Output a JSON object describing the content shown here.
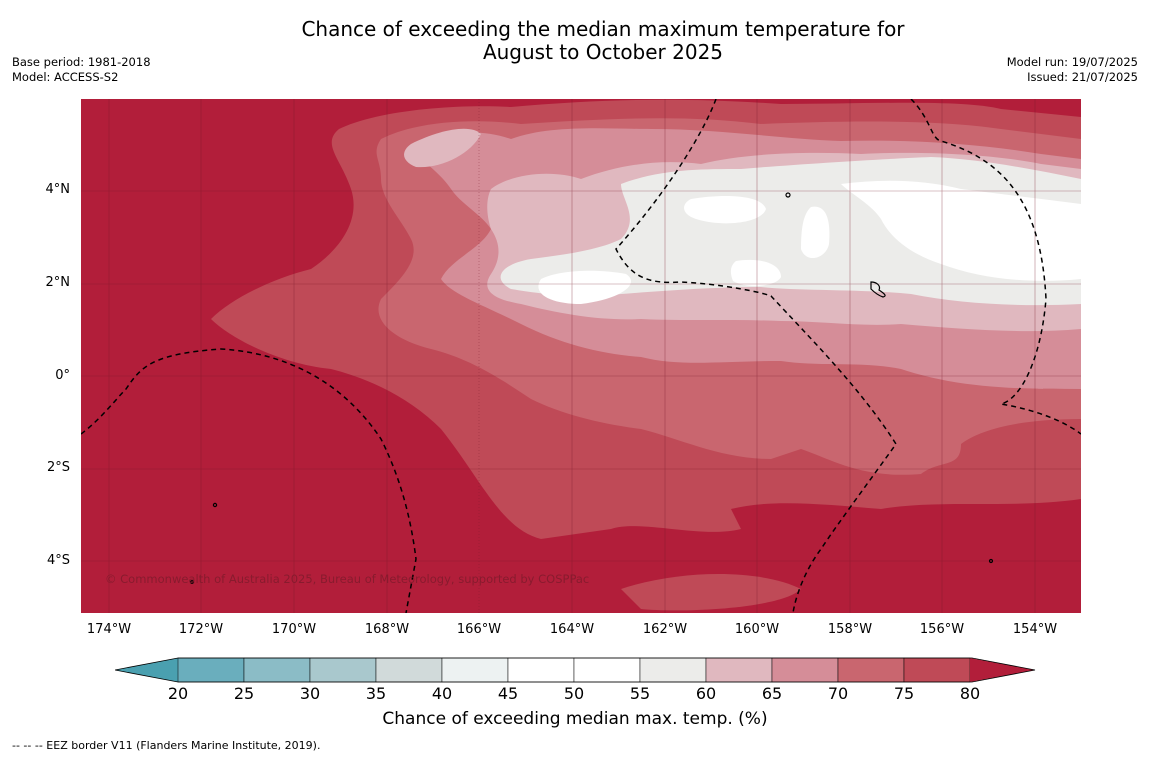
{
  "title": {
    "line1": "Chance of exceeding the median maximum temperature for",
    "line2": "August to October 2025"
  },
  "meta_left": {
    "base_period": "Base period: 1981-2018",
    "model": "Model: ACCESS-S2"
  },
  "meta_right": {
    "model_run": "Model run: 19/07/2025",
    "issued": "Issued: 21/07/2025"
  },
  "map": {
    "credit": "© Commonwealth of Australia 2025, Bureau of Meteorology, supported by COSPPac",
    "lat_labels": [
      "4°N",
      "2°N",
      "0°",
      "2°S",
      "4°S"
    ],
    "lon_labels": [
      "174°W",
      "172°W",
      "170°W",
      "168°W",
      "166°W",
      "164°W",
      "162°W",
      "160°W",
      "158°W",
      "156°W",
      "154°W"
    ],
    "base_color": "#b21e3a"
  },
  "colorbar": {
    "label": "Chance of exceeding median max. temp. (%)",
    "ticks": [
      "20",
      "25",
      "30",
      "35",
      "40",
      "45",
      "50",
      "55",
      "60",
      "65",
      "70",
      "75",
      "80"
    ],
    "colors": [
      "#4aa0b0",
      "#6aaebd",
      "#8bbcc6",
      "#a9c8cd",
      "#d1dada",
      "#edf2f2",
      "#ffffff",
      "#ffffff",
      "#ececea",
      "#e0b8bf",
      "#d58d98",
      "#c9666f",
      "#bf4a57",
      "#b21e3a"
    ]
  },
  "footnote": "--  --  -- EEZ border V11 (Flanders Marine Institute, 2019)."
}
